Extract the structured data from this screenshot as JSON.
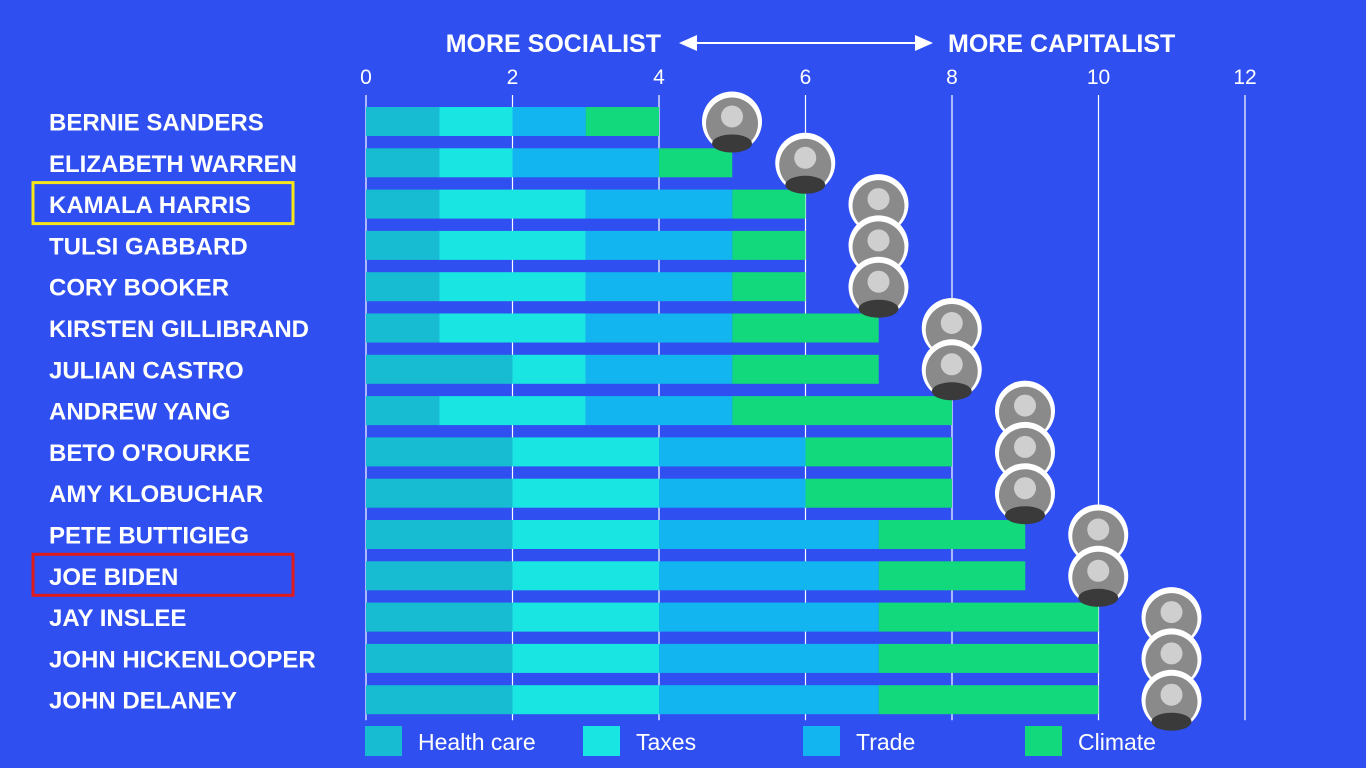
{
  "colors": {
    "background": "#2f4ff0",
    "Health care": "#17bcd2",
    "Taxes": "#19e6e2",
    "Trade": "#13b5f0",
    "Climate": "#12d97c",
    "highlight_yellow": "#f5e61a",
    "highlight_red": "#e01a1a"
  },
  "icons": {
    "arrow": "double-arrow-icon",
    "candidate_photo": "candidate-photo-icon"
  },
  "chart_data": {
    "type": "bar",
    "orientation": "horizontal",
    "stacked": true,
    "header_left": "MORE SOCIALIST",
    "header_right": "MORE CAPITALIST",
    "xlim": [
      0,
      12
    ],
    "xticks": [
      "0",
      "2",
      "4",
      "6",
      "8",
      "10",
      "12"
    ],
    "grid": "vertical lines at even ticks",
    "legend_position": "bottom",
    "categories": [
      "BERNIE SANDERS",
      "ELIZABETH WARREN",
      "KAMALA HARRIS",
      "TULSI GABBARD",
      "CORY BOOKER",
      "KIRSTEN GILLIBRAND",
      "JULIAN CASTRO",
      "ANDREW YANG",
      "BETO O'ROURKE",
      "AMY KLOBUCHAR",
      "PETE BUTTIGIEG",
      "JOE BIDEN",
      "JAY INSLEE",
      "JOHN HICKENLOOPER",
      "JOHN DELANEY"
    ],
    "series": [
      {
        "name": "Health care",
        "values": [
          1,
          1,
          1,
          1,
          1,
          1,
          2,
          1,
          2,
          2,
          2,
          2,
          2,
          2,
          2
        ]
      },
      {
        "name": "Taxes",
        "values": [
          1,
          1,
          2,
          2,
          2,
          2,
          1,
          2,
          2,
          2,
          2,
          2,
          2,
          2,
          2
        ]
      },
      {
        "name": "Trade",
        "values": [
          1,
          2,
          2,
          2,
          2,
          2,
          2,
          2,
          2,
          2,
          3,
          3,
          3,
          3,
          3
        ]
      },
      {
        "name": "Climate",
        "values": [
          1,
          1,
          1,
          1,
          1,
          2,
          2,
          3,
          2,
          2,
          2,
          2,
          3,
          3,
          3
        ]
      }
    ],
    "highlighted": [
      {
        "category": "KAMALA HARRIS",
        "color": "yellow"
      },
      {
        "category": "JOE BIDEN",
        "color": "red"
      }
    ]
  }
}
